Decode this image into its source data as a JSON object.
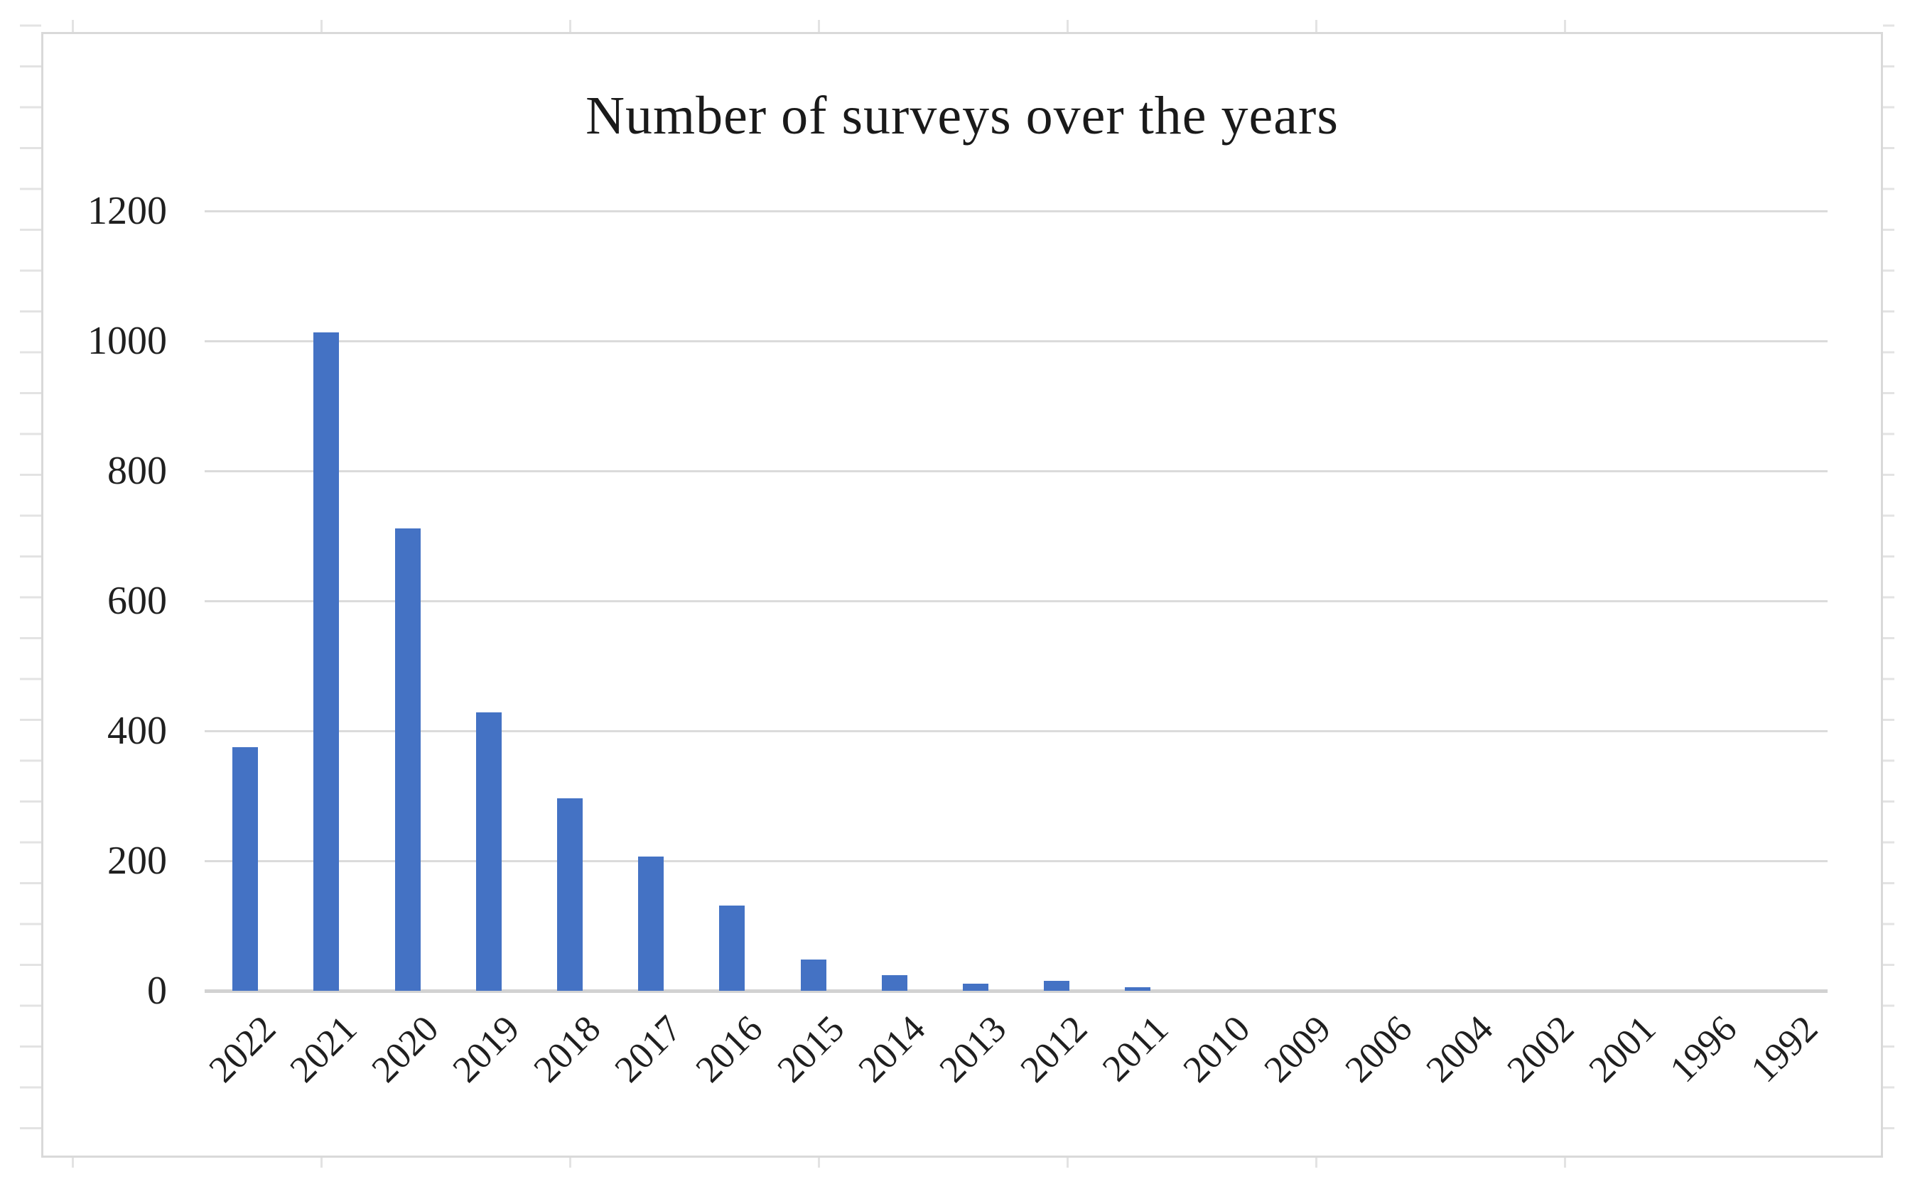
{
  "chart": {
    "bar_color": "#4472C4",
    "gridline_color": "#DBDBDB",
    "axis_line_color": "#D2D2D2",
    "frame_border_color": "#D9D9D9",
    "sheet_line_color": "#E3E3E3",
    "text_color": "#1F1F1F",
    "title_color": "#1A1A1A"
  },
  "chart_data": {
    "type": "bar",
    "title": "Number of surveys over the years",
    "categories": [
      "2022",
      "2021",
      "2020",
      "2019",
      "2018",
      "2017",
      "2016",
      "2015",
      "2014",
      "2013",
      "2012",
      "2011",
      "2010",
      "2009",
      "2006",
      "2004",
      "2002",
      "2001",
      "1996",
      "1992"
    ],
    "values": [
      375,
      1013,
      712,
      428,
      296,
      207,
      131,
      48,
      24,
      11,
      15,
      5,
      0,
      0,
      0,
      0,
      0,
      0,
      0,
      0
    ],
    "xlabel": "",
    "ylabel": "",
    "ylim": [
      0,
      1200
    ],
    "yticks": [
      0,
      200,
      400,
      600,
      800,
      1000,
      1200
    ],
    "grid": true,
    "legend": false,
    "x_tick_rotation_deg": 45,
    "gridlines_horizontal_only": true
  }
}
